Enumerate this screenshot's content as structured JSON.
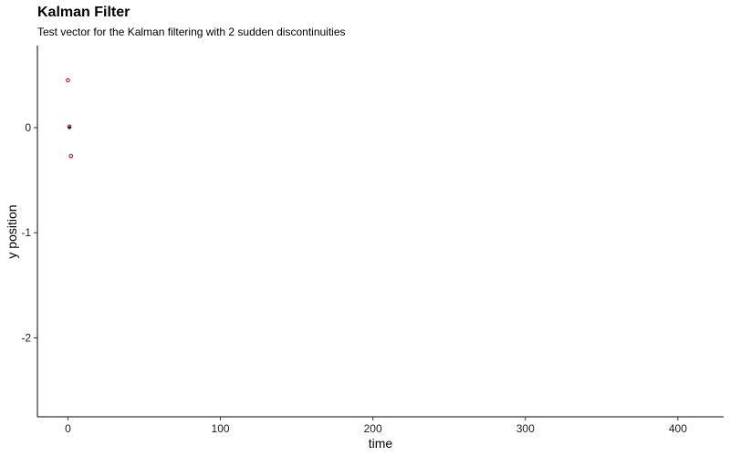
{
  "chart_data": {
    "type": "scatter",
    "title": "Kalman Filter",
    "subtitle": "Test vector for the Kalman filtering with 2 sudden discontinuities",
    "xlabel": "time",
    "ylabel": "y position",
    "xlim": [
      -20,
      430
    ],
    "ylim": [
      -2.75,
      0.78
    ],
    "x_ticks": [
      0,
      100,
      200,
      300,
      400
    ],
    "y_ticks": [
      0,
      -1,
      -2
    ],
    "grid": false,
    "series": [
      {
        "color": "#cc0000",
        "marker": "open-circle",
        "points": [
          {
            "x": 0,
            "y": 0.45
          },
          {
            "x": 1,
            "y": 0.01
          },
          {
            "x": 2,
            "y": -0.27
          }
        ]
      },
      {
        "color": "#000000",
        "marker": "filled-circle",
        "points": [
          {
            "x": 1,
            "y": 0.0
          }
        ]
      }
    ]
  }
}
